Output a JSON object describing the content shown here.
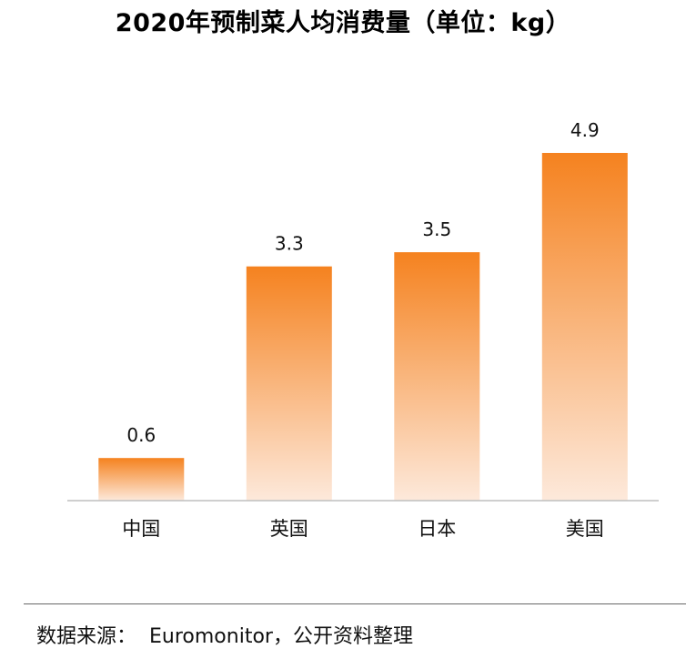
{
  "chart_data": {
    "type": "bar",
    "title": "2020年预制菜人均消费量（单位：kg）",
    "categories": [
      "中国",
      "英国",
      "日本",
      "美国"
    ],
    "values": [
      0.6,
      3.3,
      3.5,
      4.9
    ],
    "value_labels": [
      "0.6",
      "3.3",
      "3.5",
      "4.9"
    ],
    "unit": "kg",
    "xlabel": "",
    "ylabel": "",
    "ylim": [
      0,
      4.9
    ],
    "grid": false,
    "legend": "none",
    "colors": {
      "bar_top": "#F5821F",
      "bar_bottom": "#FDE9DB",
      "axis": "#BFBFBF"
    }
  },
  "footer": {
    "source_label": "数据来源：",
    "source_text": "Euromonitor，公开资料整理"
  }
}
